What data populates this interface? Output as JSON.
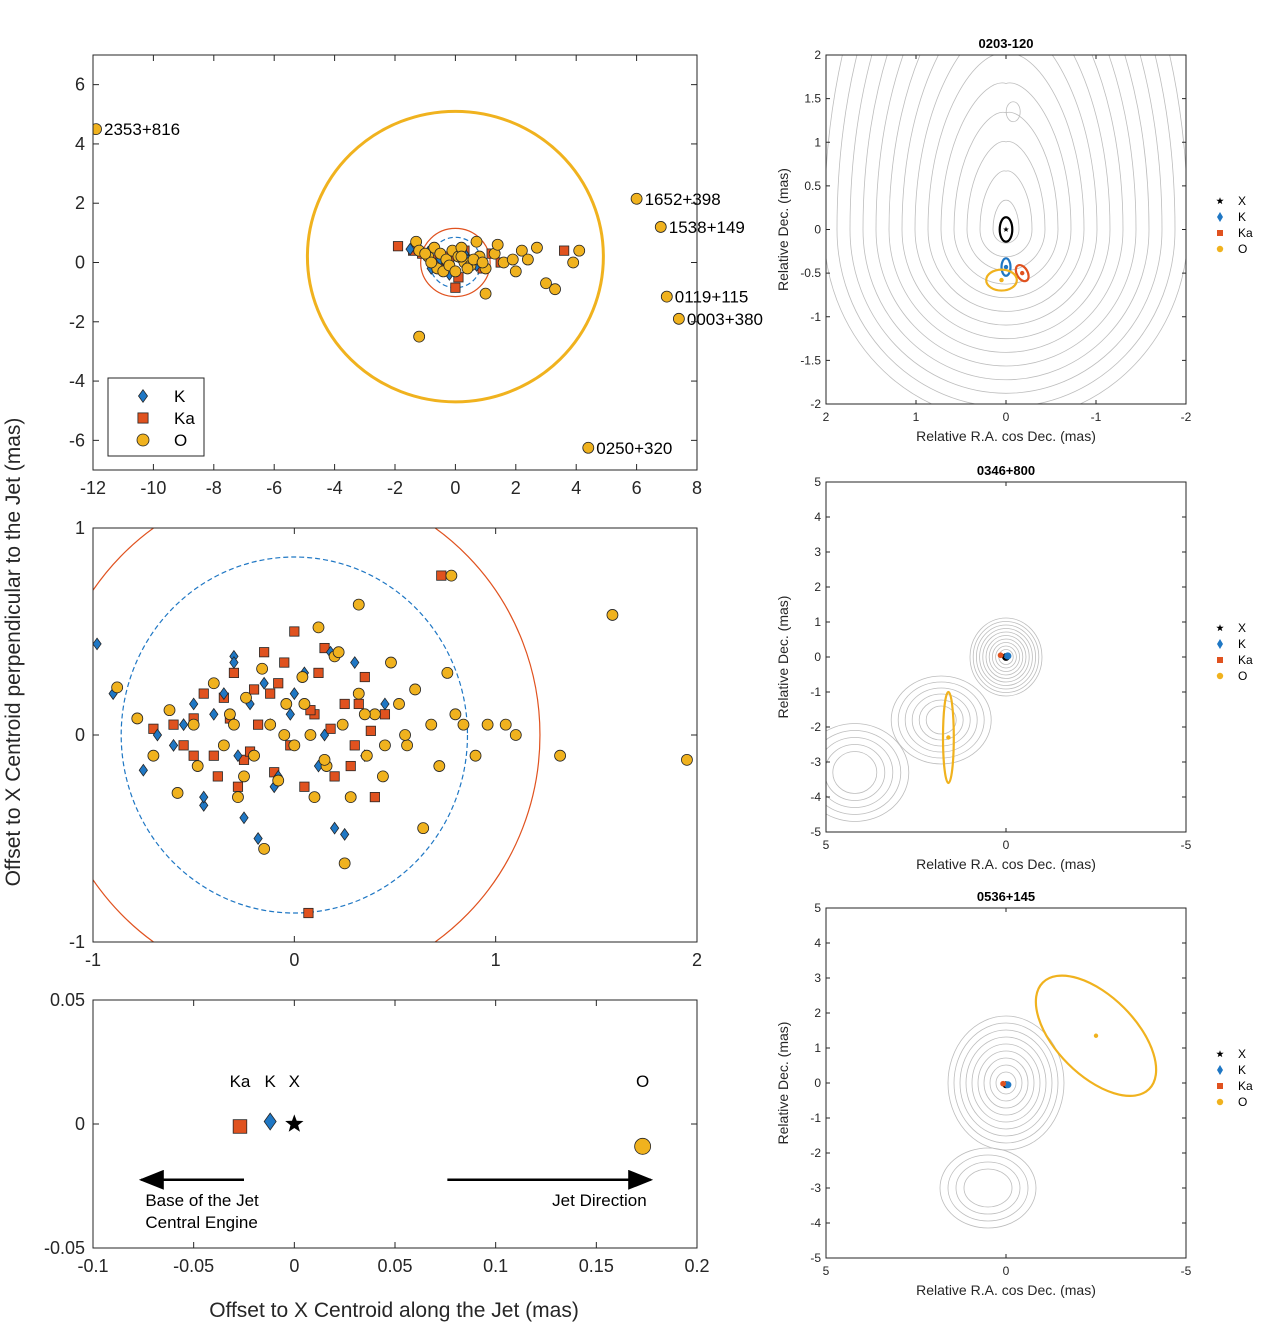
{
  "colors": {
    "K": "#1f77c4",
    "Ka": "#e0521f",
    "O": "#f0b21e",
    "X": "#000000",
    "contour": "#bdbdbd",
    "outline": "#262626"
  },
  "shared_labels": {
    "ylabel": "Offset to X Centroid perpendicular to the Jet (mas)",
    "xlabel": "Offset to X Centroid along the Jet (mas)"
  },
  "chart_data": [
    {
      "id": "top-left",
      "type": "scatter",
      "xlim": [
        -12,
        8
      ],
      "ylim": [
        -7,
        7
      ],
      "xticks": [
        -12,
        -10,
        -8,
        -6,
        -4,
        -2,
        0,
        2,
        4,
        6,
        8
      ],
      "yticks": [
        -6,
        -4,
        -2,
        0,
        2,
        4,
        6
      ],
      "legend": {
        "placement": "bottom-left",
        "entries": [
          "K",
          "Ka",
          "O"
        ]
      },
      "circles": [
        {
          "series": "O",
          "cx": 0,
          "cy": 0.2,
          "r": 4.9
        },
        {
          "series": "Ka",
          "cx": 0,
          "cy": 0,
          "r": 1.15
        },
        {
          "series": "K",
          "cx": 0,
          "cy": 0,
          "r": 0.85,
          "dashed": true
        }
      ],
      "labeled_points": [
        {
          "label": "2353+816",
          "x": -11.9,
          "y": 4.5
        },
        {
          "label": "1652+398",
          "x": 6.0,
          "y": 2.15
        },
        {
          "label": "1538+149",
          "x": 6.8,
          "y": 1.2
        },
        {
          "label": "0119+115",
          "x": 7.0,
          "y": -1.15
        },
        {
          "label": "0003+380",
          "x": 7.4,
          "y": -1.9
        },
        {
          "label": "0250+320",
          "x": 4.4,
          "y": -6.25
        }
      ],
      "series": [
        {
          "name": "K",
          "x": [
            -1.5,
            -0.9,
            -0.5,
            -0.3,
            0.1,
            0.4,
            0.7,
            -0.8,
            -0.2,
            0.3
          ],
          "y": [
            0.45,
            0.35,
            0.1,
            -0.05,
            0.2,
            0.1,
            -0.1,
            -0.2,
            -0.4,
            0.3
          ]
        },
        {
          "name": "Ka",
          "x": [
            -1.9,
            -1.4,
            -1.1,
            -0.8,
            -0.5,
            -0.2,
            0.0,
            0.3,
            0.6,
            0.9,
            1.2,
            1.5,
            3.6,
            0.1
          ],
          "y": [
            0.55,
            0.4,
            0.3,
            0.1,
            -0.1,
            0.2,
            -0.85,
            0.4,
            0.1,
            -0.2,
            0.3,
            0.0,
            0.4,
            -0.5
          ]
        },
        {
          "name": "O",
          "x": [
            -1.3,
            -1.2,
            -0.9,
            -0.7,
            -0.5,
            -0.3,
            -0.1,
            0.1,
            0.3,
            0.5,
            0.8,
            1.0,
            -0.6,
            -0.4,
            -0.2,
            0.2,
            0.4,
            0.6,
            -0.8,
            0.0,
            1.3,
            1.6,
            1.9,
            2.2,
            2.7,
            3.0,
            3.3,
            3.9,
            4.1,
            2.0,
            1.4,
            1.0,
            2.4,
            -1.2,
            0.7,
            -1.0,
            0.9,
            0.2
          ],
          "y": [
            0.7,
            0.4,
            0.2,
            0.5,
            0.3,
            0.1,
            0.4,
            0.2,
            0.0,
            -0.1,
            0.2,
            -0.2,
            -0.2,
            -0.3,
            -0.1,
            0.5,
            -0.2,
            0.1,
            0.0,
            -0.3,
            0.3,
            0.0,
            0.1,
            0.4,
            0.5,
            -0.7,
            -0.9,
            0.0,
            0.4,
            -0.3,
            0.6,
            -1.05,
            0.1,
            -2.5,
            0.7,
            0.3,
            0.0,
            0.2
          ]
        }
      ]
    },
    {
      "id": "middle-left",
      "type": "scatter",
      "xlim": [
        -1,
        2
      ],
      "ylim": [
        -1,
        1
      ],
      "xticks": [
        -1,
        0,
        1,
        2
      ],
      "yticks": [
        -1,
        0,
        1
      ],
      "circles": [
        {
          "series": "Ka",
          "cx": 0,
          "cy": 0,
          "r": 1.22
        },
        {
          "series": "K",
          "cx": 0,
          "cy": 0,
          "r": 0.86,
          "dashed": true
        }
      ],
      "series": [
        {
          "name": "K",
          "x": [
            -0.98,
            -0.9,
            -0.75,
            -0.68,
            -0.55,
            -0.45,
            -0.4,
            -0.35,
            -0.3,
            -0.28,
            -0.22,
            -0.18,
            -0.12,
            -0.08,
            -0.02,
            0.05,
            0.12,
            0.18,
            0.2,
            -0.6,
            -0.5,
            -0.3,
            -0.1,
            0.0,
            0.15,
            0.35,
            0.45,
            -0.45,
            -0.25,
            -0.15,
            0.25,
            0.3
          ],
          "y": [
            0.44,
            0.2,
            -0.17,
            0.0,
            0.05,
            -0.34,
            0.1,
            0.2,
            0.38,
            -0.1,
            0.15,
            -0.5,
            0.05,
            -0.2,
            0.1,
            0.3,
            -0.15,
            0.4,
            -0.45,
            -0.05,
            0.15,
            0.35,
            -0.25,
            0.2,
            0.0,
            -0.1,
            0.15,
            -0.3,
            -0.4,
            0.25,
            -0.48,
            0.35
          ]
        },
        {
          "name": "Ka",
          "x": [
            -0.7,
            -0.6,
            -0.55,
            -0.5,
            -0.45,
            -0.4,
            -0.35,
            -0.3,
            -0.25,
            -0.2,
            -0.15,
            -0.1,
            -0.05,
            0.0,
            0.05,
            0.1,
            0.15,
            0.2,
            0.25,
            0.3,
            0.35,
            0.4,
            0.45,
            -0.38,
            -0.32,
            -0.22,
            -0.12,
            -0.02,
            0.08,
            0.18,
            0.28,
            0.38,
            0.07,
            0.73,
            -0.5,
            -0.28,
            -0.08,
            0.12,
            0.32,
            -0.18
          ],
          "y": [
            0.03,
            0.05,
            -0.05,
            0.08,
            0.2,
            -0.1,
            0.18,
            0.3,
            -0.12,
            0.22,
            0.4,
            -0.18,
            0.35,
            0.5,
            -0.25,
            0.1,
            0.42,
            -0.2,
            0.15,
            -0.05,
            0.28,
            -0.3,
            0.1,
            -0.2,
            0.08,
            -0.08,
            0.2,
            -0.05,
            0.12,
            0.03,
            -0.15,
            0.02,
            -0.86,
            0.77,
            -0.1,
            -0.25,
            0.25,
            0.3,
            0.15,
            0.05
          ]
        },
        {
          "name": "O",
          "x": [
            -0.88,
            -0.78,
            -0.7,
            -0.62,
            -0.58,
            -0.5,
            -0.48,
            -0.4,
            -0.35,
            -0.32,
            -0.28,
            -0.24,
            -0.2,
            -0.16,
            -0.12,
            -0.08,
            -0.04,
            0.0,
            0.04,
            0.08,
            0.12,
            0.16,
            0.2,
            0.24,
            0.28,
            0.32,
            0.36,
            0.4,
            0.44,
            0.48,
            0.52,
            0.56,
            0.6,
            0.64,
            0.68,
            0.72,
            0.76,
            0.8,
            0.84,
            0.9,
            0.96,
            1.05,
            1.1,
            1.32,
            1.58,
            1.95,
            0.78,
            0.25,
            0.32,
            -0.15,
            -0.05,
            0.1,
            -0.25,
            0.22,
            0.35,
            0.45,
            0.55,
            0.05,
            -0.3,
            0.15
          ],
          "y": [
            0.23,
            0.08,
            -0.1,
            0.12,
            -0.28,
            0.05,
            -0.15,
            0.25,
            -0.05,
            0.1,
            -0.3,
            0.18,
            -0.1,
            0.32,
            0.05,
            -0.22,
            0.15,
            -0.05,
            0.28,
            0.0,
            0.52,
            -0.15,
            0.38,
            0.05,
            -0.3,
            0.2,
            -0.1,
            0.1,
            -0.2,
            0.35,
            0.15,
            -0.05,
            0.22,
            -0.45,
            0.05,
            -0.15,
            0.3,
            0.1,
            0.05,
            -0.1,
            0.05,
            0.05,
            0.0,
            -0.1,
            0.58,
            -0.12,
            0.77,
            -0.62,
            0.63,
            -0.55,
            0.0,
            -0.3,
            -0.2,
            0.4,
            0.1,
            -0.05,
            0.0,
            0.15,
            0.05,
            -0.12
          ]
        }
      ]
    },
    {
      "id": "bottom-left",
      "type": "scatter",
      "xlim": [
        -0.1,
        0.2
      ],
      "ylim": [
        -0.05,
        0.05
      ],
      "xticks": [
        -0.1,
        -0.05,
        0,
        0.05,
        0.1,
        0.15,
        0.2
      ],
      "yticks": [
        -0.05,
        0,
        0.05
      ],
      "xtick_labels": [
        "-0.1",
        "-0.05",
        "0",
        "0.05",
        "0.1",
        "0.15",
        "0.2"
      ],
      "ytick_labels": [
        "-0.05",
        "0",
        "0.05"
      ],
      "points": [
        {
          "series": "Ka",
          "label": "Ka",
          "x": -0.027,
          "y": -0.001
        },
        {
          "series": "K",
          "label": "K",
          "x": -0.012,
          "y": 0.001
        },
        {
          "series": "X",
          "label": "X",
          "x": 0.0,
          "y": 0.0
        },
        {
          "series": "O",
          "label": "O",
          "x": 0.173,
          "y": -0.009
        }
      ],
      "annotations": {
        "left_arrow_line1": "Base of the Jet",
        "left_arrow_line2": "Central Engine",
        "right_arrow": "Jet Direction"
      }
    },
    {
      "id": "right-1",
      "type": "contour",
      "title": "0203-120",
      "xlabel": "Relative R.A. cos Dec. (mas)",
      "ylabel": "Relative Dec. (mas)",
      "xlim": [
        2,
        -2
      ],
      "ylim": [
        -2,
        2
      ],
      "xticks": [
        2,
        1,
        0,
        -1,
        -2
      ],
      "yticks": [
        -2,
        -1.5,
        -1,
        -0.5,
        0,
        0.5,
        1,
        1.5,
        2
      ],
      "ytick_labels": [
        "-2",
        "-1.5",
        "-1",
        "-0.5",
        "0",
        "0.5",
        "1",
        "1.5",
        "2"
      ],
      "legend": {
        "placement": "outside-right",
        "entries": [
          "X",
          "K",
          "Ka",
          "O"
        ]
      },
      "centroids": [
        {
          "series": "X",
          "x": 0.0,
          "y": 0.0,
          "ex": 0.07,
          "ey": 0.14,
          "angle": 0
        },
        {
          "series": "K",
          "x": 0.0,
          "y": -0.43,
          "ex": 0.05,
          "ey": 0.1,
          "angle": 0
        },
        {
          "series": "Ka",
          "x": -0.18,
          "y": -0.5,
          "ex": 0.06,
          "ey": 0.1,
          "angle": 30
        },
        {
          "series": "O",
          "x": 0.05,
          "y": -0.58,
          "ex": 0.17,
          "ey": 0.12,
          "angle": 0
        }
      ]
    },
    {
      "id": "right-2",
      "type": "contour",
      "title": "0346+800",
      "xlabel": "Relative R.A. cos Dec. (mas)",
      "ylabel": "Relative Dec. (mas)",
      "xlim": [
        5,
        -5
      ],
      "ylim": [
        -5,
        5
      ],
      "xticks": [
        5,
        0,
        -5
      ],
      "yticks": [
        -5,
        -4,
        -3,
        -2,
        -1,
        0,
        1,
        2,
        3,
        4,
        5
      ],
      "legend": {
        "placement": "outside-right",
        "entries": [
          "X",
          "K",
          "Ka",
          "O"
        ]
      },
      "centroids": [
        {
          "series": "X",
          "x": 0.0,
          "y": 0.0,
          "ex": 0.08,
          "ey": 0.08,
          "angle": 0
        },
        {
          "series": "K",
          "x": -0.05,
          "y": 0.03,
          "ex": 0.07,
          "ey": 0.07,
          "angle": 0
        },
        {
          "series": "Ka",
          "x": 0.15,
          "y": 0.05,
          "ex": 0.05,
          "ey": 0.05,
          "angle": 0
        },
        {
          "series": "O",
          "x": 1.6,
          "y": -2.3,
          "ex": 0.15,
          "ey": 1.3,
          "angle": 0
        }
      ]
    },
    {
      "id": "right-3",
      "type": "contour",
      "title": "0536+145",
      "xlabel": "Relative R.A. cos Dec. (mas)",
      "ylabel": "Relative Dec. (mas)",
      "xlim": [
        5,
        -5
      ],
      "ylim": [
        -5,
        5
      ],
      "xticks": [
        5,
        0,
        -5
      ],
      "yticks": [
        -5,
        -4,
        -3,
        -2,
        -1,
        0,
        1,
        2,
        3,
        4,
        5
      ],
      "legend": {
        "placement": "outside-right",
        "entries": [
          "X",
          "K",
          "Ka",
          "O"
        ]
      },
      "centroids": [
        {
          "series": "X",
          "x": 0.0,
          "y": -0.05,
          "ex": 0.07,
          "ey": 0.07,
          "angle": 0
        },
        {
          "series": "K",
          "x": -0.05,
          "y": -0.05,
          "ex": 0.07,
          "ey": 0.07,
          "angle": 0
        },
        {
          "series": "Ka",
          "x": 0.08,
          "y": -0.02,
          "ex": 0.05,
          "ey": 0.05,
          "angle": 0
        },
        {
          "series": "O",
          "x": -2.5,
          "y": 1.35,
          "ex": 1.1,
          "ey": 2.15,
          "angle": 45
        }
      ]
    }
  ]
}
